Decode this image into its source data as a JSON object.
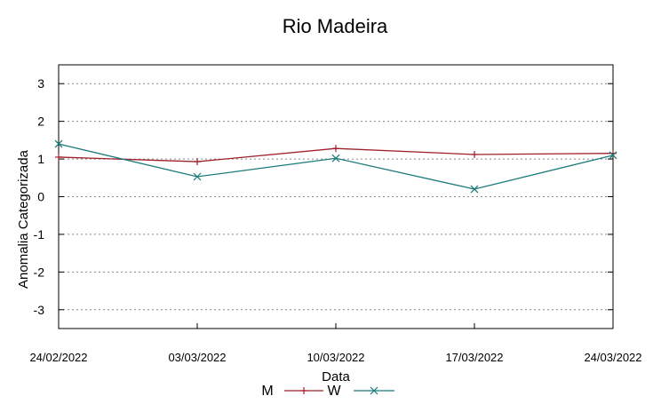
{
  "chart_data": {
    "type": "line",
    "title": "Rio Madeira",
    "xlabel": "Data",
    "ylabel": "Anomalia Categorizada",
    "categories": [
      "24/02/2022",
      "03/03/2022",
      "10/03/2022",
      "17/03/2022",
      "24/03/2022"
    ],
    "yticks": [
      "3",
      "2",
      "1",
      "0",
      "-1",
      "-2",
      "-3"
    ],
    "ylim": [
      -3.5,
      3.5
    ],
    "grid": "horizontal dotted",
    "legend_position": "bottom-center",
    "series": [
      {
        "name": "M",
        "color": "#a0202a",
        "marker": "plus",
        "values": [
          1.05,
          0.93,
          1.28,
          1.12,
          1.15
        ]
      },
      {
        "name": "W",
        "color": "#1a7a7a",
        "marker": "cross",
        "values": [
          1.4,
          0.53,
          1.02,
          0.2,
          1.1
        ]
      }
    ]
  }
}
